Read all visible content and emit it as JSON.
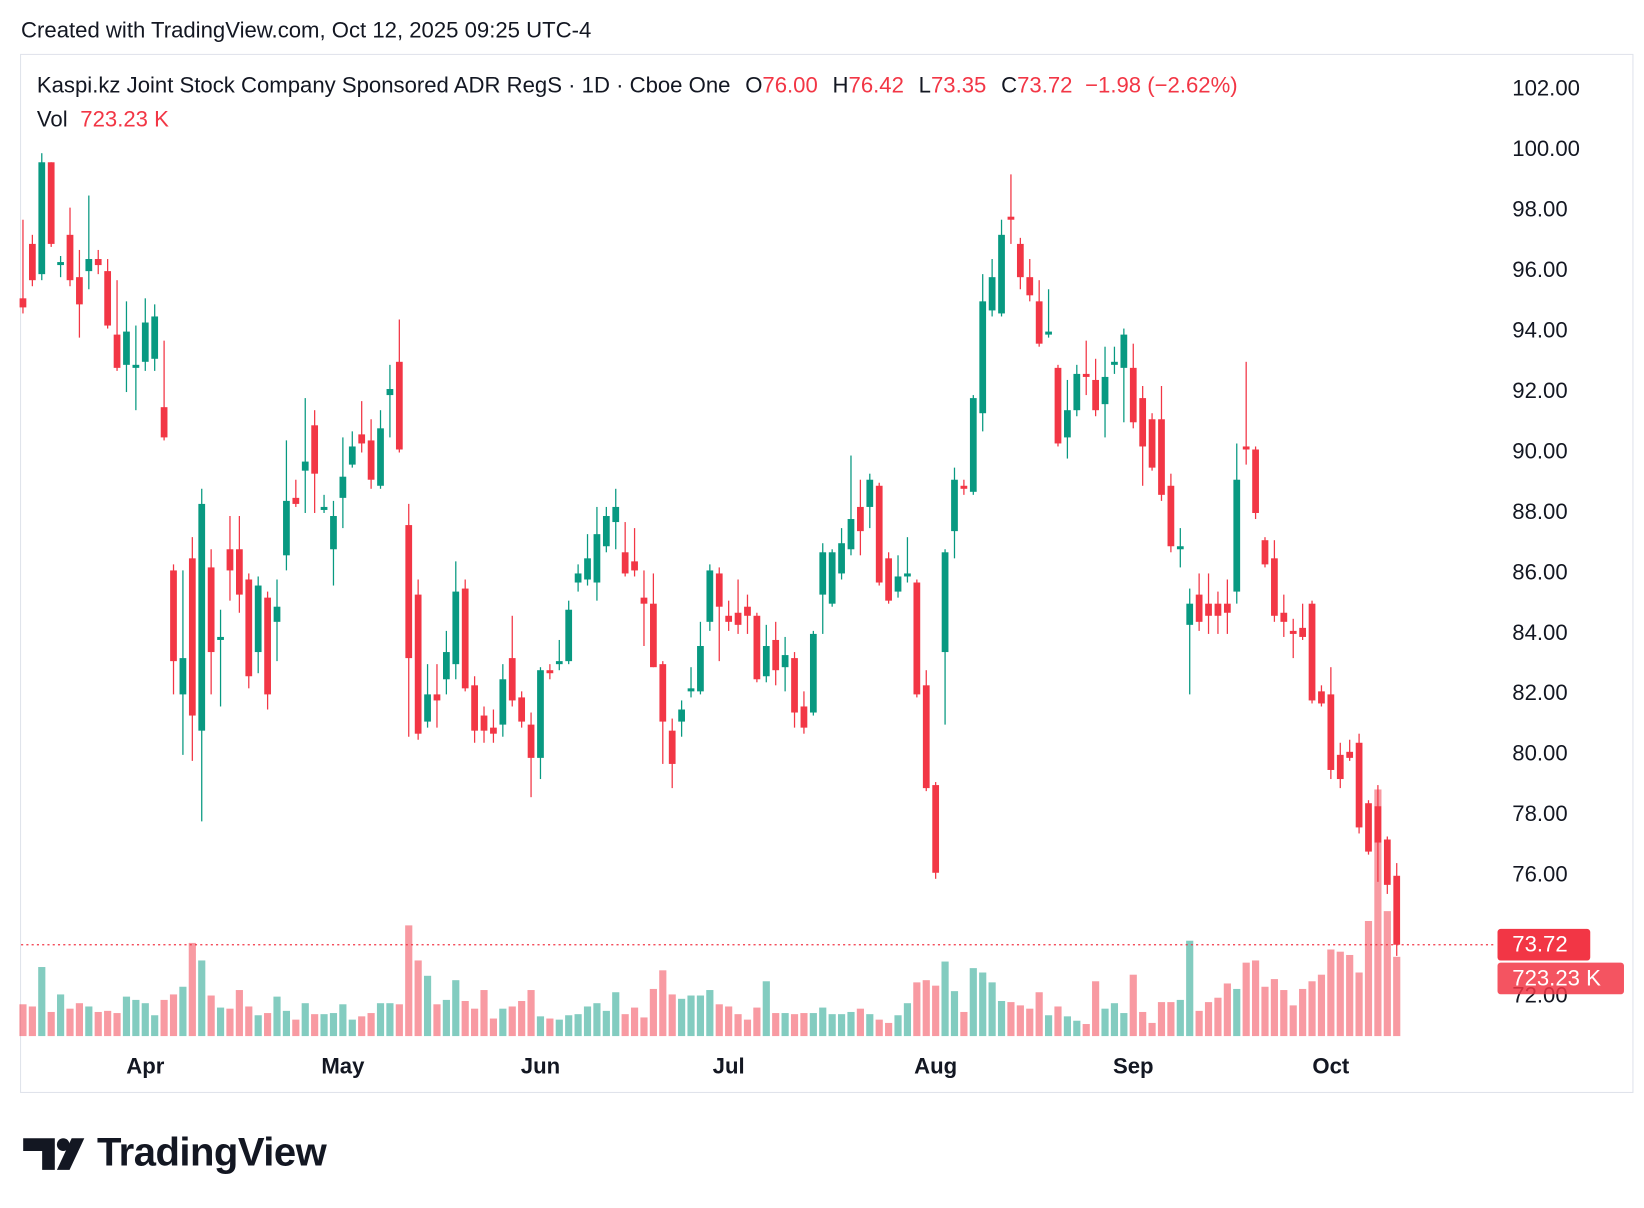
{
  "header": {
    "created": "Created with TradingView.com, Oct 12, 2025 09:25 UTC-4",
    "brand": "TradingView"
  },
  "chart_data": {
    "type": "candlestick",
    "title": "Kaspi.kz Joint Stock Company Sponsored ADR RegS · 1D · Cboe One",
    "legend": {
      "names": [
        "O",
        "H",
        "L",
        "C"
      ],
      "value_labels": [
        "76.00",
        "76.42",
        "73.35",
        "73.72"
      ],
      "change": "−1.98 (−2.62%)"
    },
    "open": [
      95.1,
      96.9,
      95.9,
      99.6,
      96.2,
      97.2,
      95.8,
      96.0,
      96.4,
      96.0,
      93.9,
      92.9,
      92.8,
      93.0,
      93.1,
      91.5,
      86.1,
      82.0,
      86.5,
      80.8,
      86.2,
      83.8,
      86.8,
      86.8,
      85.8,
      83.4,
      85.2,
      84.4,
      86.6,
      88.5,
      89.4,
      90.9,
      88.1,
      86.8,
      88.5,
      89.6,
      90.6,
      90.4,
      88.9,
      91.9,
      93.0,
      87.6,
      85.3,
      81.1,
      82.0,
      82.5,
      83.0,
      85.5,
      82.3,
      81.3,
      80.9,
      81.0,
      83.2,
      81.9,
      81.0,
      79.9,
      82.8,
      83.0,
      83.1,
      85.7,
      85.8,
      85.7,
      86.9,
      87.7,
      86.7,
      86.4,
      85.2,
      85.0,
      83.0,
      80.8,
      81.1,
      82.1,
      82.1,
      84.4,
      86.0,
      84.6,
      84.7,
      84.9,
      84.6,
      82.6,
      83.8,
      82.9,
      83.2,
      81.6,
      81.4,
      85.3,
      85.0,
      86.0,
      86.8,
      88.2,
      88.2,
      88.9,
      86.5,
      85.4,
      85.9,
      85.7,
      82.3,
      79.0,
      83.4,
      87.4,
      88.9,
      88.7,
      91.3,
      94.7,
      94.6,
      97.8,
      96.9,
      95.8,
      95.0,
      93.9,
      92.8,
      90.5,
      91.4,
      92.6,
      92.4,
      91.6,
      92.9,
      92.8,
      92.8,
      91.8,
      91.1,
      91.1,
      88.9,
      86.8,
      84.3,
      85.3,
      85.0,
      85.0,
      85.0,
      85.4,
      90.2,
      90.1,
      87.1,
      86.5,
      84.7,
      84.1,
      84.2,
      85.0,
      82.1,
      82.0,
      80.0,
      80.1,
      80.4,
      78.4,
      78.3,
      77.2,
      76.0
    ],
    "high": [
      97.7,
      97.2,
      99.9,
      99.6,
      96.5,
      98.1,
      96.7,
      98.5,
      96.7,
      96.4,
      95.7,
      95.0,
      94.2,
      95.1,
      94.9,
      93.7,
      86.3,
      86.1,
      87.2,
      88.8,
      86.8,
      84.8,
      87.9,
      87.9,
      86.0,
      85.9,
      85.4,
      85.8,
      90.4,
      89.1,
      91.8,
      91.4,
      88.6,
      88.4,
      90.5,
      90.7,
      91.7,
      91.1,
      91.4,
      92.9,
      94.4,
      88.3,
      85.8,
      83.0,
      83.0,
      84.1,
      86.4,
      85.8,
      82.6,
      81.6,
      81.5,
      83.0,
      84.6,
      82.1,
      81.4,
      82.9,
      83.0,
      83.8,
      85.1,
      86.3,
      87.3,
      88.2,
      88.2,
      88.8,
      87.7,
      87.5,
      86.1,
      86.0,
      83.1,
      81.2,
      81.8,
      82.9,
      84.4,
      86.3,
      86.2,
      85.1,
      85.8,
      85.3,
      84.7,
      84.3,
      84.4,
      83.9,
      83.4,
      82.1,
      84.1,
      87.0,
      86.8,
      87.5,
      89.9,
      89.1,
      89.3,
      89.0,
      86.7,
      86.6,
      87.2,
      85.8,
      82.8,
      79.1,
      86.8,
      89.5,
      89.1,
      91.9,
      95.9,
      96.4,
      97.7,
      99.2,
      97.1,
      96.4,
      95.7,
      95.4,
      92.9,
      92.4,
      92.9,
      93.7,
      93.1,
      93.5,
      93.5,
      94.1,
      93.6,
      92.2,
      91.3,
      92.2,
      89.3,
      87.5,
      85.5,
      86.0,
      86.0,
      85.4,
      85.8,
      90.3,
      93.0,
      90.2,
      87.2,
      87.1,
      85.3,
      84.5,
      85.0,
      85.1,
      82.3,
      82.9,
      80.4,
      80.5,
      80.7,
      78.5,
      79.0,
      77.3,
      76.42
    ],
    "low": [
      94.6,
      95.5,
      95.7,
      96.8,
      95.8,
      95.5,
      93.8,
      95.4,
      95.9,
      94.1,
      92.7,
      92.0,
      91.4,
      92.7,
      92.7,
      90.4,
      82.0,
      80.0,
      79.8,
      77.8,
      82.0,
      81.6,
      85.1,
      84.7,
      82.2,
      82.7,
      81.5,
      83.1,
      86.1,
      88.2,
      88.0,
      88.0,
      88.0,
      85.6,
      87.5,
      89.5,
      90.0,
      88.8,
      88.8,
      90.5,
      90.0,
      80.6,
      80.5,
      80.9,
      80.9,
      82.0,
      82.5,
      82.1,
      80.4,
      80.4,
      80.4,
      80.6,
      81.6,
      80.9,
      78.6,
      79.2,
      82.5,
      82.8,
      83.0,
      85.4,
      85.6,
      85.1,
      86.7,
      86.8,
      85.9,
      85.9,
      83.6,
      82.9,
      79.7,
      78.9,
      80.6,
      81.9,
      82.0,
      84.1,
      83.1,
      84.1,
      84.0,
      84.0,
      82.4,
      82.4,
      82.3,
      82.1,
      80.9,
      80.7,
      81.3,
      84.0,
      84.9,
      85.8,
      86.6,
      86.6,
      87.5,
      85.6,
      85.0,
      85.2,
      85.7,
      81.9,
      78.8,
      75.9,
      81.0,
      86.5,
      88.6,
      88.6,
      90.7,
      94.5,
      94.5,
      96.9,
      95.4,
      95.0,
      93.5,
      93.8,
      90.2,
      89.8,
      91.2,
      91.9,
      91.2,
      90.5,
      92.6,
      91.0,
      90.8,
      88.9,
      89.4,
      88.4,
      86.7,
      86.2,
      82.0,
      84.1,
      84.0,
      84.0,
      84.0,
      85.0,
      89.6,
      87.8,
      86.2,
      84.4,
      83.9,
      83.2,
      83.8,
      81.7,
      81.6,
      79.2,
      78.9,
      79.8,
      77.4,
      76.7,
      75.8,
      75.4,
      73.35
    ],
    "close": [
      94.8,
      95.7,
      99.6,
      96.9,
      96.3,
      95.7,
      94.9,
      96.4,
      96.2,
      94.2,
      92.8,
      94.0,
      92.9,
      94.3,
      94.5,
      90.5,
      83.1,
      83.2,
      81.3,
      88.3,
      83.4,
      83.9,
      86.1,
      85.3,
      82.6,
      85.6,
      82.0,
      84.9,
      88.4,
      88.3,
      89.7,
      89.3,
      88.2,
      87.9,
      89.2,
      90.2,
      90.3,
      89.1,
      90.8,
      92.1,
      90.1,
      83.2,
      80.7,
      82.0,
      81.8,
      83.4,
      85.4,
      82.2,
      80.8,
      80.8,
      80.7,
      82.5,
      81.8,
      81.1,
      79.9,
      82.8,
      82.7,
      83.1,
      84.8,
      86.0,
      86.5,
      87.3,
      87.9,
      88.2,
      86.0,
      86.1,
      85.0,
      82.9,
      81.1,
      79.7,
      81.5,
      82.2,
      83.6,
      86.1,
      84.9,
      84.4,
      84.3,
      84.6,
      82.5,
      83.6,
      82.8,
      83.3,
      81.4,
      80.9,
      84.0,
      86.7,
      86.7,
      87.0,
      87.8,
      87.4,
      89.1,
      85.7,
      85.1,
      85.9,
      86.0,
      82.0,
      78.9,
      76.1,
      86.7,
      89.1,
      88.8,
      91.8,
      95.0,
      95.8,
      97.2,
      97.7,
      95.8,
      95.2,
      93.6,
      94.0,
      90.3,
      91.4,
      92.6,
      92.5,
      91.4,
      92.5,
      93.0,
      93.9,
      91.0,
      90.2,
      89.5,
      88.6,
      86.9,
      86.9,
      85.0,
      84.4,
      84.6,
      84.6,
      84.7,
      89.1,
      90.1,
      88.0,
      86.3,
      84.6,
      84.4,
      84.0,
      83.9,
      81.8,
      81.7,
      79.5,
      79.2,
      79.9,
      77.6,
      76.8,
      77.1,
      75.7,
      73.72
    ],
    "volume": {
      "name": "Vol",
      "last_label": "723.23 K",
      "values": [
        290,
        270,
        630,
        220,
        380,
        250,
        300,
        270,
        220,
        230,
        210,
        360,
        330,
        300,
        190,
        330,
        380,
        450,
        850,
        690,
        370,
        260,
        250,
        420,
        270,
        190,
        210,
        360,
        230,
        150,
        300,
        200,
        200,
        210,
        290,
        150,
        180,
        210,
        300,
        300,
        290,
        1010,
        690,
        550,
        290,
        330,
        510,
        320,
        250,
        420,
        160,
        250,
        270,
        320,
        420,
        180,
        160,
        150,
        190,
        200,
        270,
        300,
        230,
        400,
        200,
        260,
        170,
        430,
        600,
        380,
        340,
        370,
        370,
        420,
        290,
        270,
        200,
        150,
        260,
        500,
        210,
        210,
        200,
        210,
        210,
        260,
        200,
        200,
        220,
        250,
        200,
        150,
        120,
        190,
        300,
        490,
        510,
        460,
        680,
        410,
        220,
        620,
        580,
        490,
        320,
        310,
        280,
        250,
        400,
        190,
        270,
        180,
        140,
        110,
        500,
        250,
        300,
        210,
        560,
        220,
        120,
        310,
        310,
        330,
        870,
        230,
        310,
        350,
        480,
        430,
        670,
        690,
        450,
        520,
        420,
        280,
        430,
        500,
        560,
        790,
        770,
        740,
        580,
        1050,
        2250,
        1140,
        723.23
      ]
    },
    "up_color": "#089981",
    "down_color": "#f23645",
    "ylim": [
      70.28,
      103.15
    ],
    "yticks": [
      {
        "value": 72,
        "label": "72.00"
      },
      {
        "value": 76,
        "label": "76.00"
      },
      {
        "value": 78,
        "label": "78.00"
      },
      {
        "value": 80,
        "label": "80.00"
      },
      {
        "value": 82,
        "label": "82.00"
      },
      {
        "value": 84,
        "label": "84.00"
      },
      {
        "value": 86,
        "label": "86.00"
      },
      {
        "value": 88,
        "label": "88.00"
      },
      {
        "value": 90,
        "label": "90.00"
      },
      {
        "value": 92,
        "label": "92.00"
      },
      {
        "value": 94,
        "label": "94.00"
      },
      {
        "value": 96,
        "label": "96.00"
      },
      {
        "value": 98,
        "label": "98.00"
      },
      {
        "value": 100,
        "label": "100.00"
      },
      {
        "value": 102,
        "label": "102.00"
      }
    ],
    "xlim": [
      -0.2,
      156.6
    ],
    "xticks": [
      {
        "value": 13,
        "label": "Apr"
      },
      {
        "value": 34,
        "label": "May"
      },
      {
        "value": 55,
        "label": "Jun"
      },
      {
        "value": 75,
        "label": "Jul"
      },
      {
        "value": 97,
        "label": "Aug"
      },
      {
        "value": 118,
        "label": "Sep"
      },
      {
        "value": 139,
        "label": "Oct"
      }
    ],
    "vlim": [
      0,
      2500
    ],
    "grid": true
  }
}
